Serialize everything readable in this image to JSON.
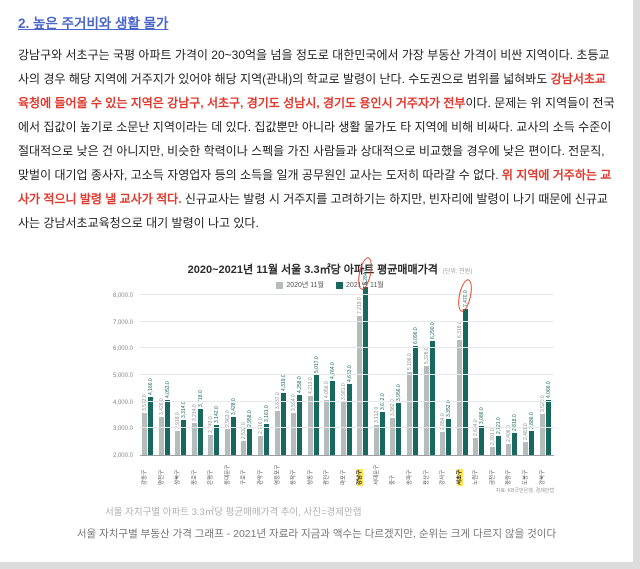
{
  "page": {
    "heading": "2. 높은 주거비와 생활 물가",
    "paragraph_segments": [
      {
        "style": "normal",
        "text": "강남구와 서초구는 국평 아파트 가격이 20~30억을 넘을 정도로 대한민국에서 가장 부동산 가격이 비싼 지역이다. 초등교사의 경우 해당 지역에 거주지가 있어야 해당 지역(관내)의 학교로 발령이 난다. 수도권으로 범위를 넓혀봐도 "
      },
      {
        "style": "red-bold",
        "text": "강남서초교육청에 들어올 수 있는 지역은 강남구, 서초구, 경기도 성남시, 경기도 용인시 거주자가 전부"
      },
      {
        "style": "normal",
        "text": "이다. 문제는 위 지역들이 전국에서 집값이 높기로 소문난 지역이라는 데 있다. 집값뿐만 아니라 생활 물가도 타 지역에 비해 비싸다. 교사의 소득 수준이 절대적으로 낮은 건 아니지만, 비슷한 학력이나 스펙을 가진 사람들과 상대적으로 비교했을 경우에 낮은 편이다. 전문직, 맞벌이 대기업 종사자, 고소득 자영업자 등의 소득을 일개 공무원인 교사는 도저히 따라갈 수 없다. "
      },
      {
        "style": "red-bold",
        "text": "위 지역에 거주하는 교사가 적으니 발령 낼 교사가 적다."
      },
      {
        "style": "normal",
        "text": " 신규교사는 발령 시 거주지를 고려하기는 하지만, 빈자리에 발령이 나기 때문에 신규교사는 강남서초교육청으로 대기 발령이 나고 있다."
      }
    ],
    "caption_photo": "서울 자치구별 아파트 3.3㎡당 평균매매가격 추이, 사진=경제만랩",
    "caption_comment": "서울 자치구별 부동산 가격 그래프 - 2021년 자료라 지금과 액수는 다르겠지만, 순위는 크게 다르지 않을 것이다"
  },
  "chart_data": {
    "type": "bar",
    "title": "2020~2021년 11월 서울 3.3㎡당 아파트 평균매매가격",
    "unit_note": "(단위: 만원)",
    "source_note": "자료: KB국민은행, 경제만랩",
    "legend_position": "top",
    "grid": true,
    "ylim": [
      2000,
      8000
    ],
    "ytick_step": 1000,
    "ytick_labels": [
      "2,000.0",
      "3,000.0",
      "4,000.0",
      "5,000.0",
      "6,000.0",
      "7,000.0",
      "8,000.0"
    ],
    "categories": [
      "강동구",
      "양천구",
      "성북구",
      "종로구",
      "은평구",
      "동대문구",
      "구로구",
      "관악구",
      "영등포구",
      "동작구",
      "성동구",
      "광진구",
      "마포구",
      "강남구",
      "서대문구",
      "중구",
      "송파구",
      "용산구",
      "강서구",
      "서초구",
      "노원구",
      "금천구",
      "중랑구",
      "도봉구",
      "강북구"
    ],
    "highlighted_categories": [
      "강남구",
      "서초구"
    ],
    "series": [
      {
        "name": "2020년 11월",
        "color": "#b5bcbc",
        "label_color": "#8a9090",
        "values": [
          3572,
          3426,
          2918,
          3214,
          2743,
          2963,
          2532,
          2716,
          3667,
          3594,
          4213,
          4056,
          3981,
          7219,
          3112,
          3382,
          5106,
          5328,
          2854,
          6318,
          2634,
          2301,
          2406,
          2481,
          3520
        ]
      },
      {
        "name": "2021년 11월",
        "color": "#17685e",
        "label_color": "#17685e",
        "values": [
          4166,
          4053,
          3314,
          3718,
          3142,
          3428,
          2958,
          3161,
          4319,
          4258,
          5017,
          4764,
          4663,
          8284,
          3612,
          3956,
          6096,
          6290,
          3352,
          7470,
          3086,
          2721,
          2818,
          2886,
          4066
        ]
      }
    ],
    "annotations": [
      {
        "type": "circle",
        "category": "강남구",
        "series": "2021년 11월",
        "color": "#e8442e"
      },
      {
        "type": "circle",
        "category": "서초구",
        "series": "2021년 11월",
        "color": "#e8442e"
      }
    ]
  },
  "colors": {
    "heading_blue": "#4a66c9",
    "emphasis_red": "#e0392f",
    "highlight_yellow": "#ffe34d",
    "bar_2020": "#b5bcbc",
    "bar_2021": "#17685e",
    "annotation_red": "#e8442e"
  }
}
